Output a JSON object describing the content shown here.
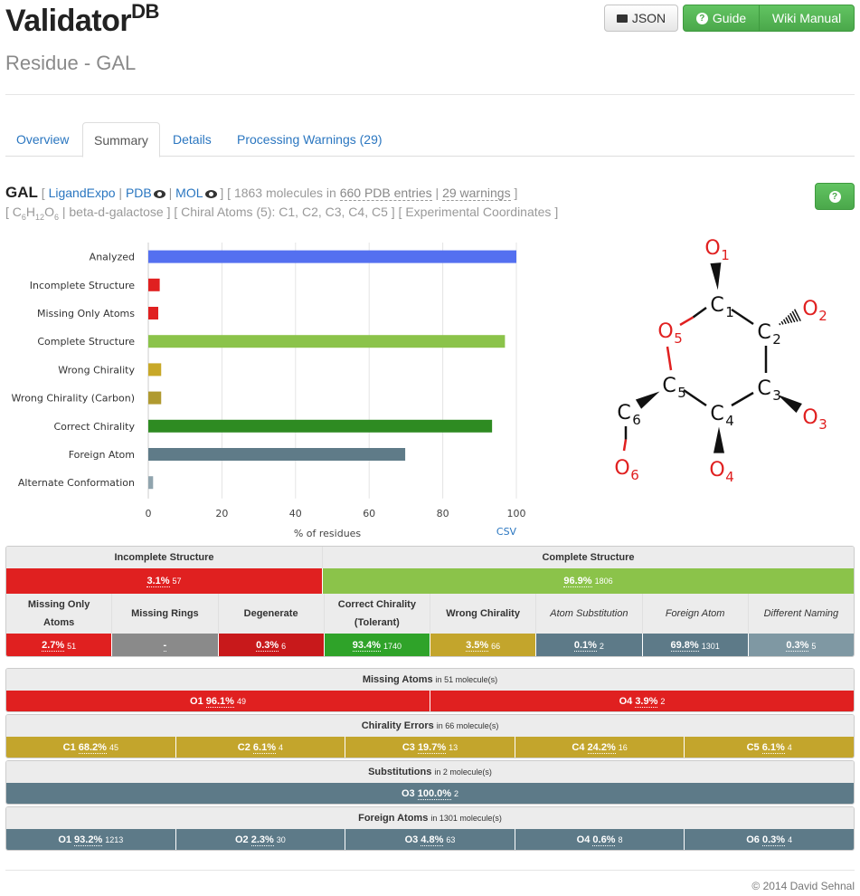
{
  "header": {
    "brand": "Validator",
    "brand_sup": "DB",
    "subtitle": "Residue - GAL",
    "json_label": "JSON",
    "guide_label": "Guide",
    "wiki_label": "Wiki Manual"
  },
  "tabs": [
    {
      "label": "Overview"
    },
    {
      "label": "Summary"
    },
    {
      "label": "Details"
    },
    {
      "label": "Processing Warnings (29)"
    }
  ],
  "residue": {
    "name": "GAL",
    "ligand_expo": "LigandExpo",
    "pdb": "PDB",
    "mol": "MOL",
    "molecules": "1863 molecules in",
    "entries": "660 PDB entries",
    "warnings": "29 warnings",
    "formula_parts": [
      "C",
      "6",
      "H",
      "12",
      "O",
      "6"
    ],
    "common_name": "beta-d-galactose",
    "chiral_atoms": "Chiral Atoms (5): C1, C2, C3, C4, C5",
    "coords": "Experimental Coordinates"
  },
  "chart_data": {
    "type": "bar",
    "orientation": "horizontal",
    "categories": [
      "Analyzed",
      "Incomplete Structure",
      "Missing Only Atoms",
      "Complete Structure",
      "Wrong Chirality",
      "Wrong Chirality (Carbon)",
      "Correct Chirality",
      "Foreign Atom",
      "Alternate Conformation"
    ],
    "values": [
      100,
      3.1,
      2.7,
      96.9,
      3.5,
      3.5,
      93.4,
      69.8,
      1.3
    ],
    "colors": [
      "#5470f0",
      "#e02020",
      "#e02020",
      "#8bc34a",
      "#c8a828",
      "#b09a30",
      "#2e8b22",
      "#5f7b88",
      "#90a4ae"
    ],
    "xlabel": "% of residues",
    "xlim": [
      0,
      100
    ],
    "xticks": [
      "0",
      "20",
      "40",
      "60",
      "80",
      "100"
    ],
    "csv_label": "CSV"
  },
  "molecule": {
    "atoms": [
      {
        "el": "O",
        "n": "1",
        "color": "#e02020"
      },
      {
        "el": "C",
        "n": "1",
        "color": "#111"
      },
      {
        "el": "O",
        "n": "2",
        "color": "#e02020"
      },
      {
        "el": "O",
        "n": "5",
        "color": "#e02020"
      },
      {
        "el": "C",
        "n": "2",
        "color": "#111"
      },
      {
        "el": "C",
        "n": "5",
        "color": "#111"
      },
      {
        "el": "C",
        "n": "3",
        "color": "#111"
      },
      {
        "el": "C",
        "n": "6",
        "color": "#111"
      },
      {
        "el": "C",
        "n": "4",
        "color": "#111"
      },
      {
        "el": "O",
        "n": "3",
        "color": "#e02020"
      },
      {
        "el": "O",
        "n": "6",
        "color": "#e02020"
      },
      {
        "el": "O",
        "n": "4",
        "color": "#e02020"
      }
    ]
  },
  "summary": {
    "top": [
      {
        "label": "Incomplete Structure"
      },
      {
        "label": "Complete Structure"
      }
    ],
    "top_vals": [
      {
        "pct": "3.1%",
        "n": "57",
        "color": "#e02020"
      },
      {
        "pct": "96.9%",
        "n": "1806",
        "color": "#8bc34a"
      }
    ],
    "sub": [
      {
        "label": "Missing Only Atoms",
        "italic": false
      },
      {
        "label": "Missing Rings",
        "italic": false
      },
      {
        "label": "Degenerate",
        "italic": false
      },
      {
        "label": "Correct Chirality (Tolerant)",
        "italic": false
      },
      {
        "label": "Wrong Chirality",
        "italic": false
      },
      {
        "label": "Atom Substitution",
        "italic": true
      },
      {
        "label": "Foreign Atom",
        "italic": true
      },
      {
        "label": "Different Naming",
        "italic": true
      }
    ],
    "sub_vals": [
      {
        "pct": "2.7%",
        "n": "51",
        "color": "#e02020"
      },
      {
        "pct": "-",
        "n": "",
        "color": "#8a8a8a"
      },
      {
        "pct": "0.3%",
        "n": "6",
        "color": "#c8191b"
      },
      {
        "pct": "93.4%",
        "n": "1740",
        "color": "#2fa329"
      },
      {
        "pct": "3.5%",
        "n": "66",
        "color": "#c3a52c"
      },
      {
        "pct": "0.1%",
        "n": "2",
        "color": "#5d7a88"
      },
      {
        "pct": "69.8%",
        "n": "1301",
        "color": "#5d7a88"
      },
      {
        "pct": "0.3%",
        "n": "5",
        "color": "#7f98a3"
      }
    ]
  },
  "missing": {
    "title": "Missing Atoms",
    "suffix": "in 51 molecule(s)",
    "color": "#e02020",
    "items": [
      {
        "atom": "O1",
        "pct": "96.1%",
        "n": "49"
      },
      {
        "atom": "O4",
        "pct": "3.9%",
        "n": "2"
      }
    ]
  },
  "chirality": {
    "title": "Chirality Errors",
    "suffix": "in 66 molecule(s)",
    "color": "#c3a52c",
    "items": [
      {
        "atom": "C1",
        "pct": "68.2%",
        "n": "45"
      },
      {
        "atom": "C2",
        "pct": "6.1%",
        "n": "4"
      },
      {
        "atom": "C3",
        "pct": "19.7%",
        "n": "13"
      },
      {
        "atom": "C4",
        "pct": "24.2%",
        "n": "16"
      },
      {
        "atom": "C5",
        "pct": "6.1%",
        "n": "4"
      }
    ]
  },
  "substitutions": {
    "title": "Substitutions",
    "suffix": "in 2 molecule(s)",
    "color": "#5d7a88",
    "items": [
      {
        "atom": "O3",
        "pct": "100.0%",
        "n": "2"
      }
    ]
  },
  "foreign": {
    "title": "Foreign Atoms",
    "suffix": "in 1301 molecule(s)",
    "color": "#5d7a88",
    "items": [
      {
        "atom": "O1",
        "pct": "93.2%",
        "n": "1213"
      },
      {
        "atom": "O2",
        "pct": "2.3%",
        "n": "30"
      },
      {
        "atom": "O3",
        "pct": "4.8%",
        "n": "63"
      },
      {
        "atom": "O4",
        "pct": "0.6%",
        "n": "8"
      },
      {
        "atom": "O6",
        "pct": "0.3%",
        "n": "4"
      }
    ]
  },
  "footer": {
    "text": "© 2014 David Sehnal"
  }
}
